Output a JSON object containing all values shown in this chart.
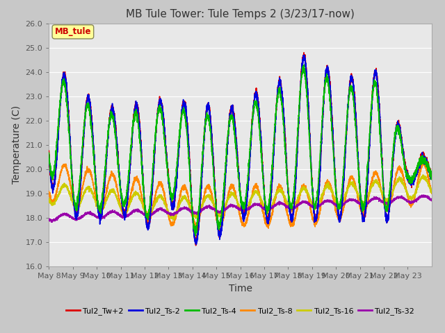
{
  "title": "MB Tule Tower: Tule Temps 2 (3/23/17-now)",
  "xlabel": "Time",
  "ylabel": "Temperature (C)",
  "ylim": [
    16.0,
    26.0
  ],
  "yticks": [
    16,
    17,
    18,
    19,
    20,
    21,
    22,
    23,
    24,
    25,
    26
  ],
  "x_labels": [
    "May 8",
    "May 9",
    "May 10",
    "May 11",
    "May 12",
    "May 13",
    "May 14",
    "May 15",
    "May 16",
    "May 17",
    "May 18",
    "May 19",
    "May 20",
    "May 21",
    "May 22",
    "May 23"
  ],
  "annotation_label": "MB_tule",
  "annotation_color": "#cc0000",
  "annotation_box_color": "#ffff99",
  "series_names": [
    "Tul2_Tw+2",
    "Tul2_Ts-2",
    "Tul2_Ts-4",
    "Tul2_Ts-8",
    "Tul2_Ts-16",
    "Tul2_Ts-32"
  ],
  "series_colors": [
    "#dd0000",
    "#0000dd",
    "#00bb00",
    "#ff8800",
    "#cccc00",
    "#9900aa"
  ],
  "lw": 1.2,
  "background_color": "#e8e8e8",
  "grid_color": "#ffffff",
  "title_fontsize": 11,
  "axis_fontsize": 10,
  "tick_fontsize": 8,
  "figsize": [
    6.4,
    4.8
  ],
  "dpi": 100
}
